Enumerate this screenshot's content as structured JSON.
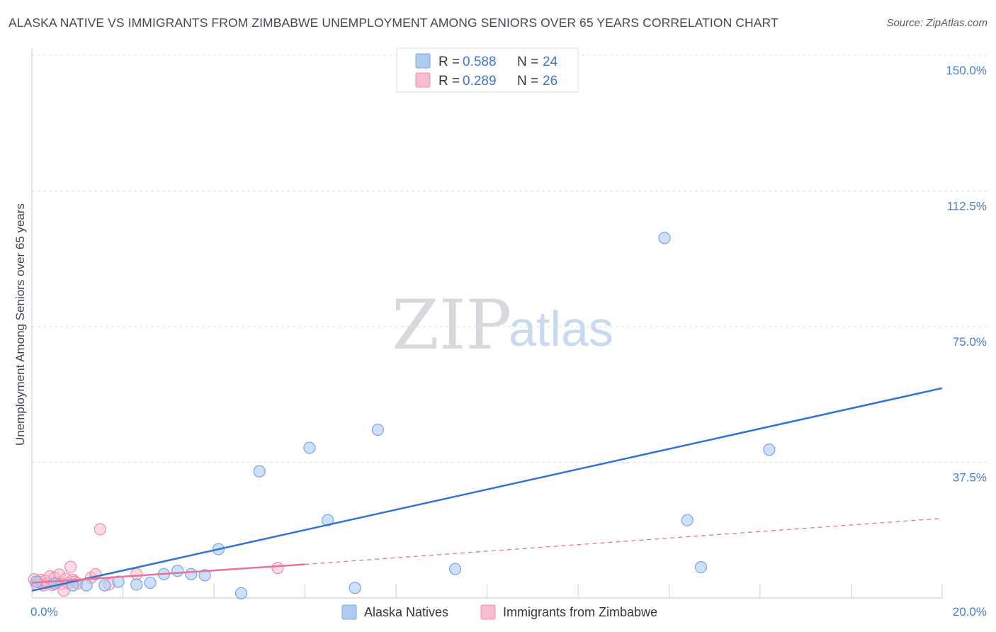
{
  "title": "ALASKA NATIVE VS IMMIGRANTS FROM ZIMBABWE UNEMPLOYMENT AMONG SENIORS OVER 65 YEARS CORRELATION CHART",
  "source": "Source: ZipAtlas.com",
  "watermark": {
    "zip": "ZIP",
    "atlas": "atlas"
  },
  "colors": {
    "blue_fill": "#aecbf2",
    "blue_stroke": "#7aa5e0",
    "blue_line": "#2f74d0",
    "pink_fill": "#f7bccd",
    "pink_stroke": "#ec8fac",
    "pink_line": "#e8729a",
    "grid": "#dadde2",
    "tick_text": "#4a7cc9"
  },
  "legend": {
    "rows": [
      {
        "r_label": "R =",
        "r_value": "0.588",
        "n_label": "N =",
        "n_value": "24",
        "series": "Alaska Natives"
      },
      {
        "r_label": "R =",
        "r_value": "0.289",
        "n_label": "N =",
        "n_value": "26",
        "series": "Immigrants from Zimbabwe"
      }
    ]
  },
  "chart_data": {
    "type": "scatter",
    "title": "ALASKA NATIVE VS IMMIGRANTS FROM ZIMBABWE UNEMPLOYMENT AMONG SENIORS OVER 65 YEARS CORRELATION CHART",
    "xlabel": "",
    "ylabel": "Unemployment Among Seniors over 65 years",
    "xlim": [
      0,
      20
    ],
    "ylim": [
      0,
      150
    ],
    "x_ticks": [
      {
        "value": 0,
        "label": "0.0%"
      },
      {
        "value": 20,
        "label": "20.0%"
      }
    ],
    "y_ticks": [
      {
        "value": 37.5,
        "label": "37.5%"
      },
      {
        "value": 75,
        "label": "75.0%"
      },
      {
        "value": 112.5,
        "label": "112.5%"
      },
      {
        "value": 150,
        "label": "150.0%"
      }
    ],
    "x_minor_ticks": [
      2,
      4,
      6,
      8,
      10,
      12,
      14,
      16,
      18,
      20
    ],
    "grid": true,
    "legend_position": "top-center",
    "series": [
      {
        "name": "Alaska Natives",
        "color": "blue",
        "R": 0.588,
        "N": 24,
        "points": [
          [
            0.1,
            4.5
          ],
          [
            0.9,
            3.5
          ],
          [
            1.2,
            3.5
          ],
          [
            1.6,
            3.5
          ],
          [
            1.9,
            4.5
          ],
          [
            2.3,
            3.7
          ],
          [
            2.6,
            4.2
          ],
          [
            2.9,
            6.6
          ],
          [
            3.2,
            7.5
          ],
          [
            3.5,
            6.6
          ],
          [
            3.8,
            6.3
          ],
          [
            4.1,
            13.5
          ],
          [
            4.6,
            1.3
          ],
          [
            5.0,
            35.0
          ],
          [
            6.1,
            41.5
          ],
          [
            6.5,
            21.5
          ],
          [
            7.1,
            2.8
          ],
          [
            7.6,
            46.5
          ],
          [
            9.3,
            8.0
          ],
          [
            13.9,
            99.5
          ],
          [
            14.4,
            21.5
          ],
          [
            14.7,
            8.5
          ],
          [
            16.2,
            41.0
          ],
          [
            0.5,
            4.0
          ]
        ],
        "trend": {
          "x0": 0.0,
          "y0": 2.0,
          "x1": 20.0,
          "y1": 58.0,
          "dashed_from": null
        }
      },
      {
        "name": "Immigrants from Zimbabwe",
        "color": "pink",
        "R": 0.289,
        "N": 26,
        "points": [
          [
            0.05,
            5.2
          ],
          [
            0.1,
            3.8
          ],
          [
            0.15,
            4.4
          ],
          [
            0.2,
            5.0
          ],
          [
            0.25,
            3.5
          ],
          [
            0.3,
            4.8
          ],
          [
            0.35,
            4.0
          ],
          [
            0.4,
            6.0
          ],
          [
            0.45,
            3.6
          ],
          [
            0.5,
            5.6
          ],
          [
            0.55,
            4.3
          ],
          [
            0.6,
            6.5
          ],
          [
            0.65,
            3.9
          ],
          [
            0.7,
            2.0
          ],
          [
            0.75,
            5.3
          ],
          [
            0.8,
            4.1
          ],
          [
            0.85,
            8.6
          ],
          [
            0.9,
            5.0
          ],
          [
            0.95,
            4.5
          ],
          [
            1.0,
            4.0
          ],
          [
            1.3,
            5.6
          ],
          [
            1.4,
            6.6
          ],
          [
            1.5,
            19.0
          ],
          [
            1.7,
            3.8
          ],
          [
            2.3,
            6.6
          ],
          [
            5.4,
            8.3
          ]
        ],
        "trend": {
          "x0": 0.0,
          "y0": 4.2,
          "x1": 6.0,
          "y1": 9.3,
          "dashed_to_x": 20.0,
          "dashed_to_y": 22.0
        }
      }
    ]
  },
  "bottom_legend": [
    {
      "label": "Alaska Natives",
      "color": "blue"
    },
    {
      "label": "Immigrants from Zimbabwe",
      "color": "pink"
    }
  ]
}
